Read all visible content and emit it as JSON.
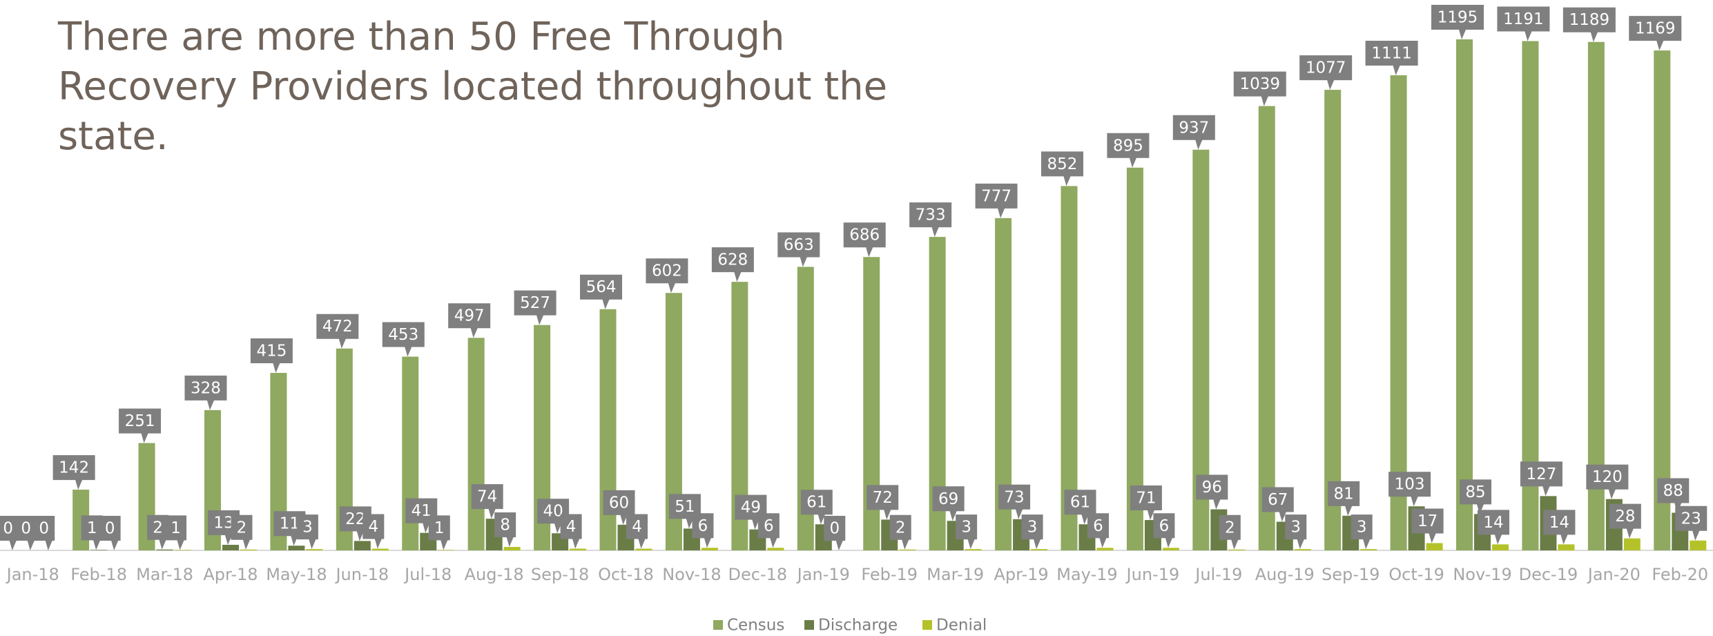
{
  "chart_data": {
    "type": "bar",
    "title": "There are more than 50 Free Through Recovery Providers located throughout the state.",
    "categories": [
      "Jan-18",
      "Feb-18",
      "Mar-18",
      "Apr-18",
      "May-18",
      "Jun-18",
      "Jul-18",
      "Aug-18",
      "Sep-18",
      "Oct-18",
      "Nov-18",
      "Dec-18",
      "Jan-19",
      "Feb-19",
      "Mar-19",
      "Apr-19",
      "May-19",
      "Jun-19",
      "Jul-19",
      "Aug-19",
      "Sep-19",
      "Oct-19",
      "Nov-19",
      "Dec-19",
      "Jan-20",
      "Feb-20"
    ],
    "series": [
      {
        "name": "Census",
        "color": "#8fa960",
        "values": [
          0,
          142,
          251,
          328,
          415,
          472,
          453,
          497,
          527,
          564,
          602,
          628,
          663,
          686,
          733,
          777,
          852,
          895,
          937,
          1039,
          1077,
          1111,
          1195,
          1191,
          1189,
          1169
        ]
      },
      {
        "name": "Discharge",
        "color": "#6a7d47",
        "values": [
          0,
          1,
          2,
          13,
          11,
          22,
          41,
          74,
          40,
          60,
          51,
          49,
          61,
          72,
          69,
          73,
          61,
          71,
          96,
          67,
          81,
          103,
          85,
          127,
          120,
          88
        ]
      },
      {
        "name": "Denial",
        "color": "#b4c22a",
        "values": [
          0,
          0,
          1,
          2,
          3,
          4,
          1,
          8,
          4,
          4,
          6,
          6,
          0,
          2,
          3,
          3,
          6,
          6,
          2,
          3,
          3,
          17,
          14,
          14,
          28,
          23
        ]
      }
    ],
    "legend": "bottom"
  }
}
